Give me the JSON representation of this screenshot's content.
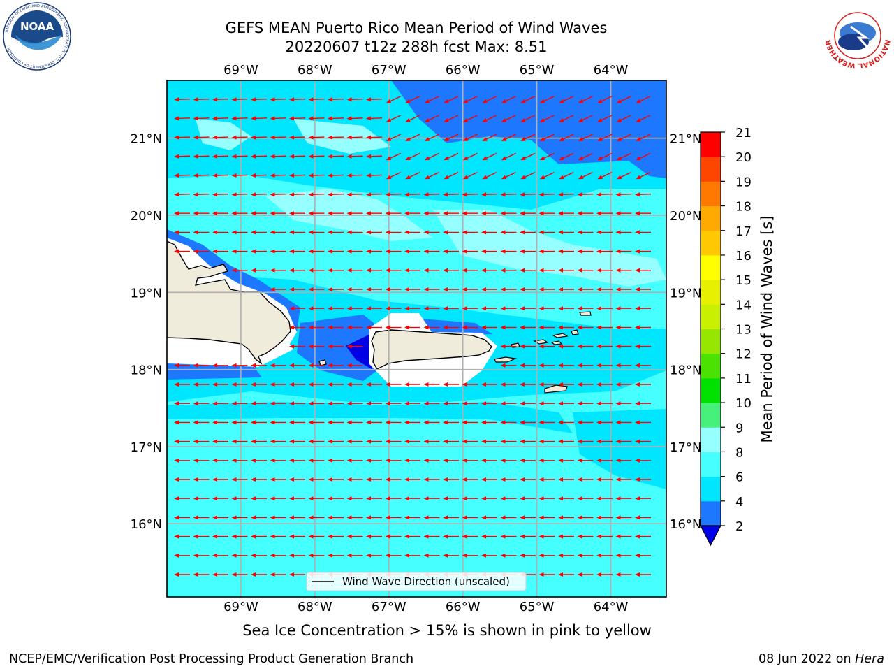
{
  "header": {
    "title_line1": "GEFS MEAN Puerto Rico Mean Period of Wind Waves",
    "title_line2": "20220607 t12z 288h fcst   Max: 8.51"
  },
  "logos": {
    "noaa_text": "NOAA",
    "noaa_ring_text": "NATIONAL OCEANIC AND ATMOSPHERIC ADMINISTRATION · U.S. DEPARTMENT OF COMMERCE",
    "nws_ring_text": "NATIONAL WEATHER SERVICE"
  },
  "map": {
    "lon_ticks": [
      "69°W",
      "68°W",
      "67°W",
      "66°W",
      "65°W",
      "64°W"
    ],
    "lat_ticks": [
      "21°N",
      "20°N",
      "19°N",
      "18°N",
      "17°N",
      "16°N"
    ],
    "lon_values": [
      -69,
      -68,
      -67,
      -66,
      -65,
      -64
    ],
    "lat_values": [
      21,
      20,
      19,
      18,
      17,
      16
    ],
    "extent": {
      "lon_min": -70,
      "lon_max": -63.25,
      "lat_min": 15.05,
      "lat_max": 21.75
    },
    "legend_label": "Wind Wave Direction (unscaled)",
    "arrow_color": "#ff0000",
    "land_color": "#efecdc"
  },
  "colorbar": {
    "label": "Mean Period of Wind Waves [s]",
    "tick_labels": [
      "2",
      "4",
      "6",
      "8",
      "9",
      "10",
      "11",
      "12",
      "13",
      "14",
      "15",
      "16",
      "17",
      "18",
      "19",
      "20",
      "21"
    ],
    "colors": [
      "#0000e6",
      "#1e78ff",
      "#00e6ff",
      "#46ffff",
      "#96ffff",
      "#46f07a",
      "#00e100",
      "#4be100",
      "#96e600",
      "#c8f000",
      "#e6f000",
      "#ffff00",
      "#ffc800",
      "#ffaa00",
      "#ff7800",
      "#ff4600",
      "#ff0000"
    ]
  },
  "footer": {
    "note": "Sea Ice Concentration > 15% is shown in pink to yellow",
    "left": "NCEP/EMC/Verification Post Processing Product Generation Branch",
    "right_date": "08 Jun 2022 on ",
    "right_host": "Hera"
  }
}
